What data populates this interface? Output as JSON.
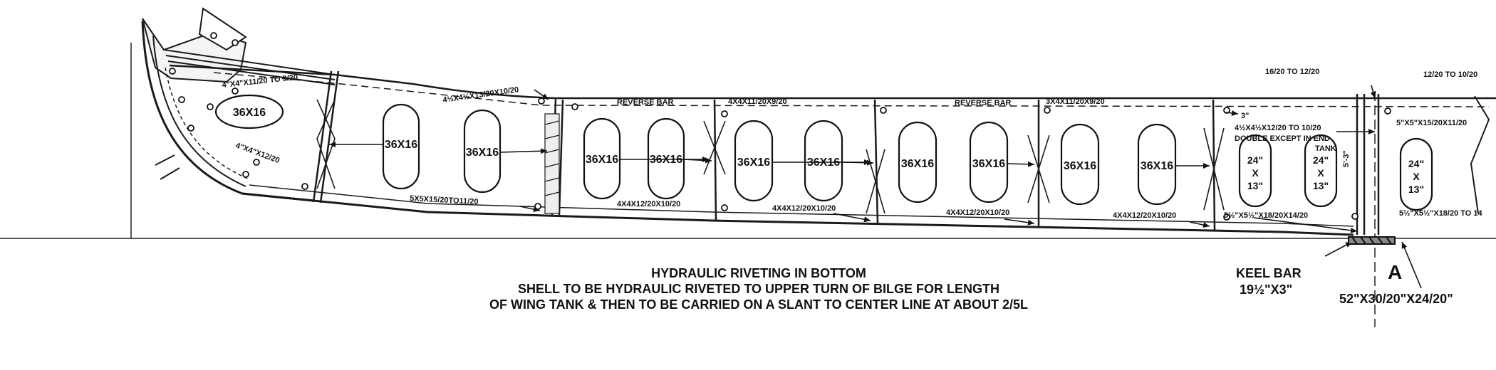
{
  "diagram": {
    "lightening_hole_label": "36X16",
    "lightening_hole_label_end": [
      "24\"",
      "X",
      "13\""
    ],
    "member_labels": {
      "bow_angle_top": "4\"X4\"X11/20 TO 9/20",
      "bow_angle_lower": "4\"X4\"X12/20",
      "frame_top_1": "4½X4½X13/20X10/20",
      "frame_bottom_1": "5X5X15/20TO11/20",
      "reverse_bar_1": "REVERSE BAR",
      "frame_top_2": "4X4X11/20X9/20",
      "frame_bottom_2": "4X4X12/20X10/20",
      "frame_bottom_3": "4X4X12/20X10/20",
      "reverse_bar_2": "REVERSE BAR",
      "frame_top_3": "3X4X11/20X9/20",
      "frame_bottom_4": "4X4X12/20X10/20",
      "frame_bottom_5": "4X4X12/20X10/20",
      "dim_3in": "3\"",
      "end_frame_a": "4½X4½X12/20 TO 10/20",
      "end_frame_b": "DOUBLE EXCEPT IN END",
      "end_frame_c": "TANK",
      "end_bottom": "5½\"X5½\"X18/20X14/20",
      "keel_side_top": "5\"X5\"X15/20X11/20",
      "keel_side_bottom": "5½\"X5½\"X18/20 TO 14",
      "vert_dim": "5'-3\"",
      "top_thickness_left": "16/20 TO 12/20",
      "top_thickness_right": "12/20 TO 10/20"
    },
    "keel_bar": {
      "title": "KEEL BAR",
      "size": "19½\"X3\""
    },
    "section_mark": "A",
    "keel_plate": "52\"X30/20\"X24/20\"",
    "caption": [
      "HYDRAULIC RIVETING IN BOTTOM",
      "SHELL TO BE HYDRAULIC RIVETED TO UPPER TURN OF BILGE FOR LENGTH",
      "OF WING TANK & THEN TO BE CARRIED ON A SLANT TO CENTER LINE AT ABOUT 2/5L"
    ]
  }
}
